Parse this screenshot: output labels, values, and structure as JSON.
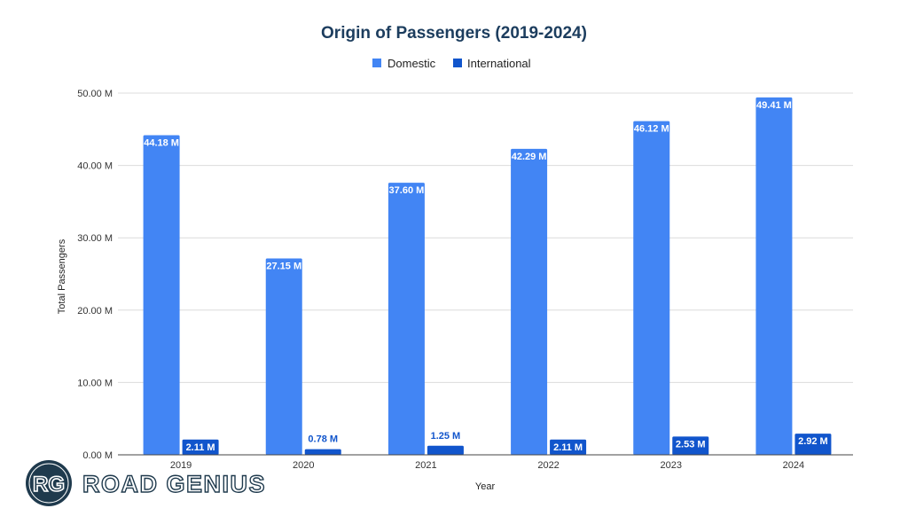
{
  "chart_data": {
    "type": "bar",
    "title": "Origin of Passengers (2019-2024)",
    "xlabel": "Year",
    "ylabel": "Total Passengers",
    "ylim": [
      0,
      50
    ],
    "y_unit": "M",
    "yticks": [
      "0.00 M",
      "10.00 M",
      "20.00 M",
      "30.00 M",
      "40.00 M",
      "50.00 M"
    ],
    "ytick_values": [
      0,
      10,
      20,
      30,
      40,
      50
    ],
    "grid": true,
    "legend_position": "top-center",
    "categories": [
      "2019",
      "2020",
      "2021",
      "2022",
      "2023",
      "2024"
    ],
    "series": [
      {
        "name": "Domestic",
        "color": "#4285f4",
        "values": [
          44.18,
          27.15,
          37.6,
          42.29,
          46.12,
          49.41
        ],
        "labels": [
          "44.18 M",
          "27.15 M",
          "37.60 M",
          "42.29 M",
          "46.12 M",
          "49.41 M"
        ]
      },
      {
        "name": "International",
        "color": "#1155cc",
        "values": [
          2.11,
          0.78,
          1.25,
          2.11,
          2.53,
          2.92
        ],
        "labels": [
          "2.11 M",
          "0.78 M",
          "1.25 M",
          "2.11 M",
          "2.53 M",
          "2.92 M"
        ]
      }
    ]
  },
  "logo": {
    "monogram": "RG",
    "wordmark": "ROAD GENIUS",
    "color": "#1f3a4d"
  }
}
